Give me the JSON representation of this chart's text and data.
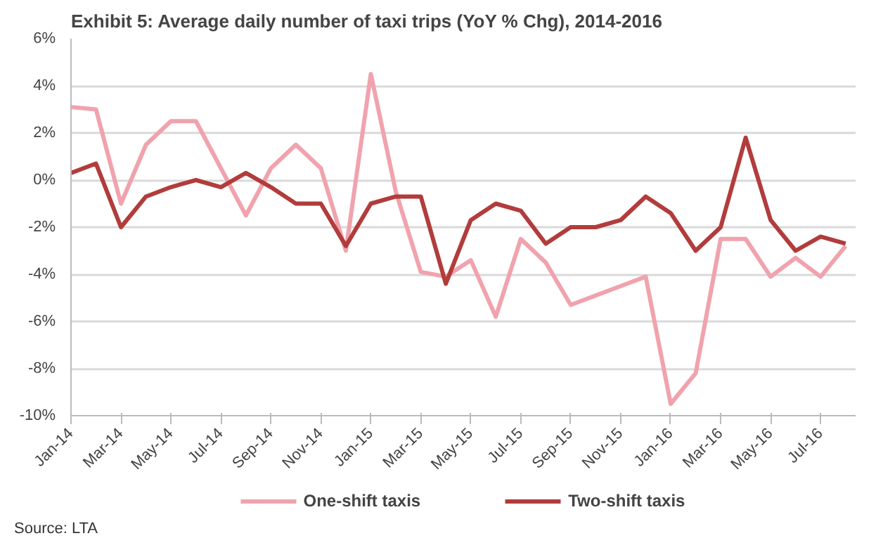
{
  "chart_data": {
    "type": "line",
    "title": "Exhibit 5: Average daily number of taxi trips (YoY % Chg), 2014-2016",
    "categories": [
      "Jan-14",
      null,
      "Mar-14",
      null,
      "May-14",
      null,
      "Jul-14",
      null,
      "Sep-14",
      null,
      "Nov-14",
      null,
      "Jan-15",
      null,
      "Mar-15",
      null,
      "May-15",
      null,
      "Jul-15",
      null,
      "Sep-15",
      null,
      "Nov-15",
      null,
      "Jan-16",
      null,
      "Mar-16",
      null,
      "May-16",
      null,
      "Jul-16",
      null
    ],
    "series": [
      {
        "name": "One-shift taxis",
        "color": "#f0a3ad",
        "values": [
          3.1,
          3.0,
          -1.0,
          1.5,
          2.5,
          2.5,
          0.5,
          -1.5,
          0.5,
          1.5,
          0.5,
          -3.0,
          4.5,
          -0.5,
          -3.9,
          -4.1,
          -3.4,
          -5.8,
          -2.5,
          -3.5,
          -5.3,
          -4.9,
          -4.5,
          -4.1,
          -9.5,
          -8.2,
          -2.5,
          -2.5,
          -4.1,
          -3.3,
          -4.1,
          -2.8
        ]
      },
      {
        "name": "Two-shift taxis",
        "color": "#b23c3c",
        "values": [
          0.3,
          0.7,
          -2.0,
          -0.7,
          -0.3,
          0.0,
          -0.3,
          0.3,
          -0.3,
          -1.0,
          -1.0,
          -2.8,
          -1.0,
          -0.7,
          -0.7,
          -4.4,
          -1.7,
          -1.0,
          -1.3,
          -2.7,
          -2.0,
          -2.0,
          -1.7,
          -0.7,
          -1.4,
          -3.0,
          -2.0,
          1.8,
          -1.7,
          -3.0,
          -2.4,
          -2.7
        ]
      }
    ],
    "ylim": [
      -10,
      6
    ],
    "yticks": [
      {
        "value": -10,
        "label": "-10%"
      },
      {
        "value": -8,
        "label": "-8%"
      },
      {
        "value": -6,
        "label": "-6%"
      },
      {
        "value": -4,
        "label": "-4%"
      },
      {
        "value": -2,
        "label": "-2%"
      },
      {
        "value": 0,
        "label": "0%"
      },
      {
        "value": 2,
        "label": "2%"
      },
      {
        "value": 4,
        "label": "4%"
      },
      {
        "value": 6,
        "label": "6%"
      }
    ],
    "grid": "y",
    "legend": "bottom",
    "marker": "none",
    "line_style": "solid",
    "annotations": [
      "Source: LTA"
    ]
  }
}
